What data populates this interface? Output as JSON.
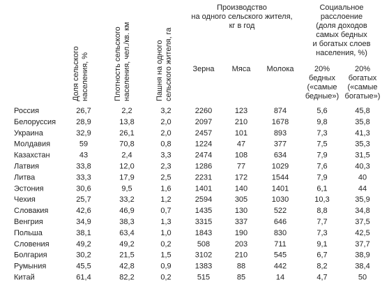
{
  "table": {
    "headers": {
      "share": [
        "Доля сельского",
        "населения, %"
      ],
      "density": [
        "Плотность сельского",
        "населения, чел./кв. км"
      ],
      "arable": [
        "Пашня на одного",
        "сельского жителя, га"
      ],
      "production": [
        "Производство",
        "на одного сельского жителя,",
        "кг в год"
      ],
      "grain": "Зерна",
      "meat": "Мяса",
      "milk": "Молока",
      "social": [
        "Социальное",
        "расслоение",
        "(доля доходов",
        "самых бедных",
        "и богатых слоев",
        "населения, %)"
      ],
      "poor": [
        "20%",
        "бедных",
        "(«самые",
        "бедные»)"
      ],
      "rich": [
        "20%",
        "богатых",
        "(«самые",
        "богатые»)"
      ]
    },
    "rows": [
      [
        "Россия",
        "26,7",
        "2,2",
        "3,2",
        "2260",
        "123",
        "874",
        "5,6",
        "45,8"
      ],
      [
        "Белоруссия",
        "28,9",
        "13,8",
        "2,0",
        "2097",
        "210",
        "1678",
        "9,8",
        "35,8"
      ],
      [
        "Украина",
        "32,9",
        "26,1",
        "2,0",
        "2457",
        "101",
        "893",
        "7,3",
        "41,3"
      ],
      [
        "Молдавия",
        "59",
        "70,8",
        "0,8",
        "1224",
        "47",
        "377",
        "7,5",
        "35,3"
      ],
      [
        "Казахстан",
        "43",
        "2,4",
        "3,3",
        "2474",
        "108",
        "634",
        "7,9",
        "31,5"
      ],
      [
        "Латвия",
        "33,8",
        "12,0",
        "2,3",
        "1286",
        "77",
        "1029",
        "7,6",
        "40,3"
      ],
      [
        "Литва",
        "33,3",
        "17,9",
        "2,5",
        "2231",
        "172",
        "1544",
        "7,9",
        "40"
      ],
      [
        "Эстония",
        "30,6",
        "9,5",
        "1,6",
        "1401",
        "140",
        "1401",
        "6,1",
        "44"
      ],
      [
        "Чехия",
        "25,7",
        "33,2",
        "1,2",
        "2594",
        "305",
        "1030",
        "10,3",
        "35,9"
      ],
      [
        "Словакия",
        "42,6",
        "46,9",
        "0,7",
        "1435",
        "130",
        "522",
        "8,8",
        "34,8"
      ],
      [
        "Венгрия",
        "34,9",
        "38,3",
        "1,3",
        "3315",
        "337",
        "646",
        "7,7",
        "37,5"
      ],
      [
        "Польша",
        "38,1",
        "63,4",
        "1,0",
        "1843",
        "190",
        "830",
        "7,3",
        "42,5"
      ],
      [
        "Словения",
        "49,2",
        "49,2",
        "0,2",
        "508",
        "203",
        "711",
        "9,1",
        "37,7"
      ],
      [
        "Болгария",
        "30,2",
        "21,5",
        "1,5",
        "3102",
        "210",
        "545",
        "6,7",
        "38,9"
      ],
      [
        "Румыния",
        "45,5",
        "42,8",
        "0,9",
        "1383",
        "88",
        "442",
        "8,2",
        "38,4"
      ],
      [
        "Китай",
        "61,4",
        "82,2",
        "0,2",
        "515",
        "85",
        "14",
        "4,7",
        "50"
      ]
    ]
  }
}
